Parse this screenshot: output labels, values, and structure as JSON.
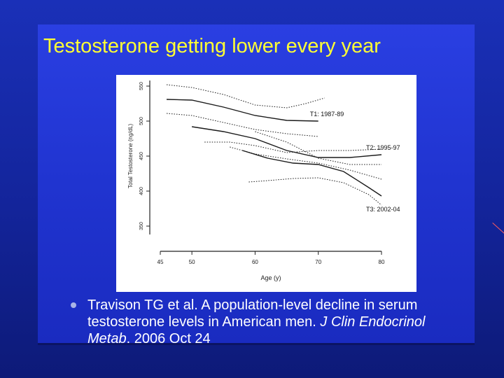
{
  "slide": {
    "title": "Testosterone getting lower every year",
    "citation": {
      "plain": "Travison TG et al. A population-level decline in serum testosterone levels in American men. ",
      "journal": "J Clin Endocrinol Metab",
      "date": ". 2006 Oct 24"
    }
  },
  "colors": {
    "title": "#ffff33",
    "background": "#1a30b8",
    "panel": "#2a3fe2",
    "text": "#ffffff"
  },
  "chart_data": {
    "type": "line",
    "xlabel": "Age (y)",
    "ylabel": "Total Testosterone (ng/dL)",
    "xlim": [
      45,
      80
    ],
    "ylim": [
      350,
      550
    ],
    "x_ticks": [
      45,
      50,
      60,
      70,
      80
    ],
    "y_ticks": [
      350,
      400,
      450,
      500,
      550
    ],
    "grid": false,
    "series": [
      {
        "name": "T1: 1987-89",
        "style": "solid",
        "points": [
          [
            46,
            531
          ],
          [
            50,
            530
          ],
          [
            55,
            520
          ],
          [
            60,
            508
          ],
          [
            65,
            501
          ],
          [
            70,
            500
          ]
        ]
      },
      {
        "style": "dotted",
        "points": [
          [
            46,
            552
          ],
          [
            50,
            548
          ],
          [
            55,
            538
          ],
          [
            60,
            523
          ],
          [
            65,
            519
          ],
          [
            68,
            525
          ],
          [
            71,
            533
          ]
        ]
      },
      {
        "style": "dotted",
        "points": [
          [
            46,
            511
          ],
          [
            50,
            508
          ],
          [
            55,
            498
          ],
          [
            60,
            488
          ],
          [
            65,
            482
          ],
          [
            70,
            478
          ]
        ]
      },
      {
        "name": "T2: 1995-97",
        "style": "solid",
        "points": [
          [
            50,
            492
          ],
          [
            55,
            485
          ],
          [
            60,
            475
          ],
          [
            65,
            458
          ],
          [
            70,
            448
          ],
          [
            75,
            448
          ],
          [
            80,
            452
          ]
        ]
      },
      {
        "style": "dotted",
        "points": [
          [
            52,
            470
          ],
          [
            56,
            470
          ],
          [
            60,
            465
          ],
          [
            65,
            455
          ],
          [
            70,
            458
          ],
          [
            75,
            458
          ],
          [
            80,
            460
          ]
        ]
      },
      {
        "style": "dotted",
        "points": [
          [
            60,
            485
          ],
          [
            65,
            470
          ],
          [
            70,
            447
          ],
          [
            75,
            438
          ],
          [
            80,
            438
          ]
        ]
      },
      {
        "name": "T3: 2002-04",
        "style": "solid",
        "points": [
          [
            58,
            458
          ],
          [
            62,
            447
          ],
          [
            66,
            440
          ],
          [
            70,
            438
          ],
          [
            74,
            428
          ],
          [
            78,
            405
          ],
          [
            80,
            393
          ]
        ]
      },
      {
        "style": "dotted",
        "points": [
          [
            56,
            463
          ],
          [
            60,
            453
          ],
          [
            65,
            446
          ],
          [
            70,
            440
          ],
          [
            75,
            430
          ],
          [
            80,
            417
          ]
        ]
      },
      {
        "style": "dotted",
        "points": [
          [
            59,
            413
          ],
          [
            62,
            415
          ],
          [
            66,
            418
          ],
          [
            70,
            419
          ],
          [
            74,
            412
          ],
          [
            78,
            395
          ],
          [
            80,
            380
          ]
        ]
      }
    ],
    "tick_labels": {
      "x": [
        "45",
        "50",
        "60",
        "70",
        "80"
      ],
      "y": [
        "350",
        "400",
        "450",
        "500",
        "550"
      ]
    }
  }
}
